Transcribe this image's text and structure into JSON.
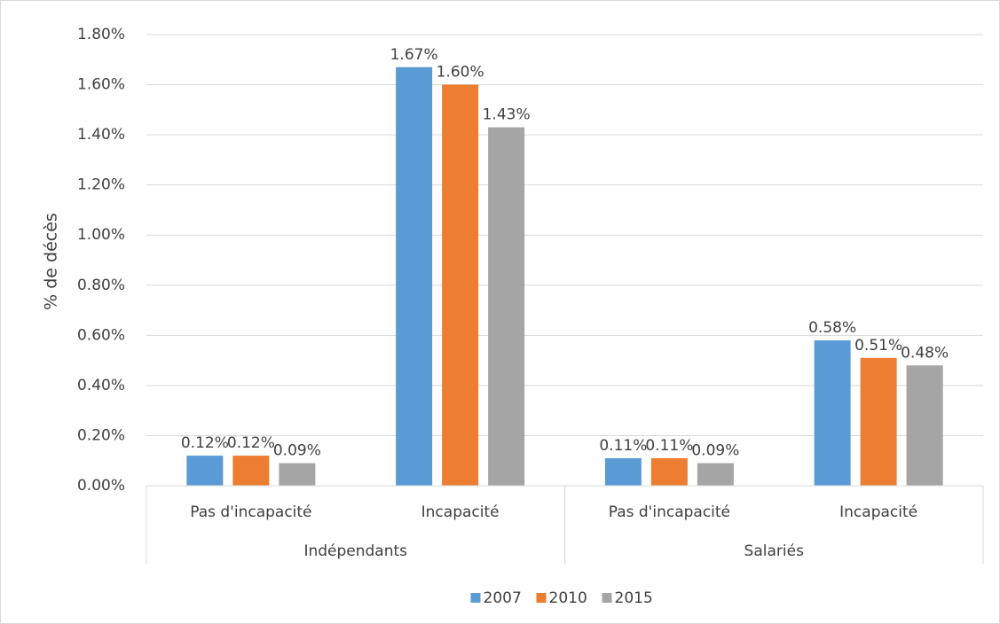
{
  "chart_data": {
    "type": "bar",
    "y_axis_label": "% de décès",
    "categories": [
      "Pas d'incapacité",
      "Incapacité",
      "Pas d'incapacité",
      "Incapacité"
    ],
    "groups": [
      "Indépendants",
      "Salariés"
    ],
    "series": [
      {
        "name": "2007",
        "color": "#5b9bd5",
        "values": [
          0.12,
          1.67,
          0.11,
          0.58
        ],
        "value_labels": [
          "0.12%",
          "1.67%",
          "0.11%",
          "0.58%"
        ]
      },
      {
        "name": "2010",
        "color": "#ed7d31",
        "values": [
          0.12,
          1.6,
          0.11,
          0.51
        ],
        "value_labels": [
          "0.12%",
          "1.60%",
          "0.11%",
          "0.51%"
        ]
      },
      {
        "name": "2015",
        "color": "#a5a5a5",
        "values": [
          0.09,
          1.43,
          0.09,
          0.48
        ],
        "value_labels": [
          "0.09%",
          "1.43%",
          "0.09%",
          "0.48%"
        ]
      }
    ],
    "ylim": [
      0,
      1.8
    ],
    "yticks": [
      {
        "value": 0,
        "label": "0.00%"
      },
      {
        "value": 0.2,
        "label": "0.20%"
      },
      {
        "value": 0.4,
        "label": "0.40%"
      },
      {
        "value": 0.6,
        "label": "0.60%"
      },
      {
        "value": 0.8,
        "label": "0.80%"
      },
      {
        "value": 1.0,
        "label": "1.00%"
      },
      {
        "value": 1.2,
        "label": "1.20%"
      },
      {
        "value": 1.4,
        "label": "1.40%"
      },
      {
        "value": 1.6,
        "label": "1.60%"
      },
      {
        "value": 1.8,
        "label": "1.80%"
      }
    ],
    "grid": true,
    "legend": "bottom"
  }
}
